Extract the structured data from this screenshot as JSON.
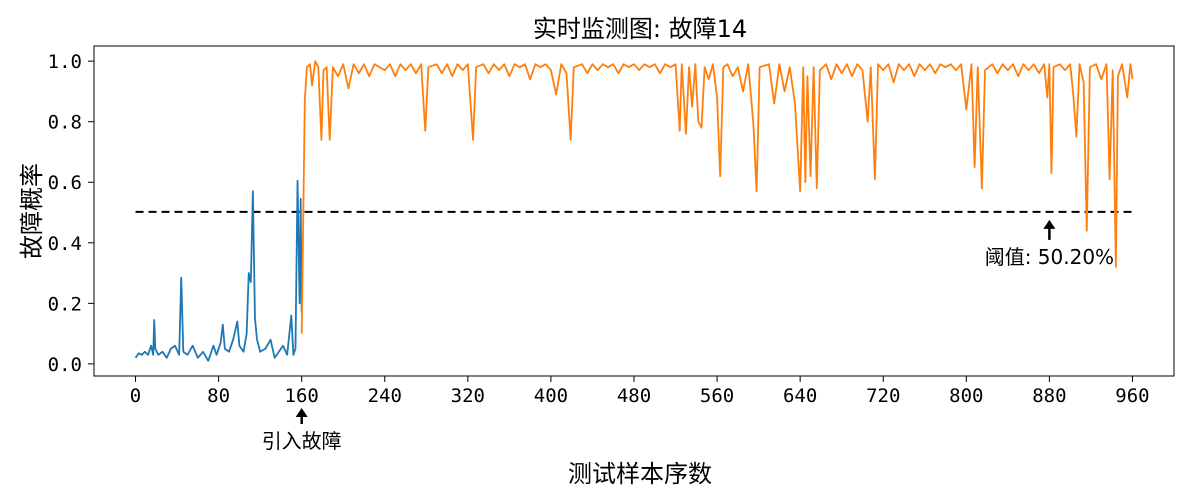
{
  "chart_data": {
    "type": "line",
    "title": "实时监测图: 故障14",
    "xlabel": "测试样本序数",
    "ylabel": "故障概率",
    "xlim": [
      -40,
      1000
    ],
    "ylim": [
      -0.04,
      1.05
    ],
    "xticks": [
      0,
      80,
      160,
      240,
      320,
      400,
      480,
      560,
      640,
      720,
      800,
      880,
      960
    ],
    "yticks": [
      0.0,
      0.2,
      0.4,
      0.6,
      0.8,
      1.0
    ],
    "xtick_labels": [
      "0",
      "80",
      "160",
      "240",
      "320",
      "400",
      "480",
      "560",
      "640",
      "720",
      "800",
      "880",
      "960"
    ],
    "ytick_labels": [
      "0.0",
      "0.2",
      "0.4",
      "0.6",
      "0.8",
      "1.0"
    ],
    "grid": false,
    "threshold": {
      "value": 0.502,
      "x_start": 0,
      "x_end": 960,
      "color": "#000000"
    },
    "annotations": [
      {
        "text": "引入故障",
        "x": 160,
        "y": -0.04,
        "position": "below-axis"
      },
      {
        "text": "阈值: 50.20%",
        "x": 880,
        "y": 0.502,
        "position": "below"
      }
    ],
    "series": [
      {
        "color": "#1f77b4",
        "points": [
          [
            0,
            0.02
          ],
          [
            3,
            0.035
          ],
          [
            6,
            0.03
          ],
          [
            9,
            0.04
          ],
          [
            12,
            0.03
          ],
          [
            15,
            0.06
          ],
          [
            17,
            0.03
          ],
          [
            18,
            0.145
          ],
          [
            19,
            0.05
          ],
          [
            22,
            0.03
          ],
          [
            26,
            0.04
          ],
          [
            30,
            0.02
          ],
          [
            34,
            0.05
          ],
          [
            38,
            0.06
          ],
          [
            42,
            0.03
          ],
          [
            44,
            0.285
          ],
          [
            46,
            0.04
          ],
          [
            50,
            0.03
          ],
          [
            55,
            0.06
          ],
          [
            60,
            0.02
          ],
          [
            65,
            0.04
          ],
          [
            70,
            0.01
          ],
          [
            75,
            0.06
          ],
          [
            78,
            0.03
          ],
          [
            82,
            0.07
          ],
          [
            84,
            0.13
          ],
          [
            86,
            0.05
          ],
          [
            90,
            0.04
          ],
          [
            94,
            0.08
          ],
          [
            98,
            0.14
          ],
          [
            100,
            0.06
          ],
          [
            104,
            0.04
          ],
          [
            107,
            0.1
          ],
          [
            109,
            0.3
          ],
          [
            111,
            0.27
          ],
          [
            113,
            0.57
          ],
          [
            115,
            0.15
          ],
          [
            117,
            0.08
          ],
          [
            120,
            0.04
          ],
          [
            125,
            0.05
          ],
          [
            130,
            0.08
          ],
          [
            134,
            0.02
          ],
          [
            138,
            0.04
          ],
          [
            142,
            0.06
          ],
          [
            146,
            0.03
          ],
          [
            150,
            0.16
          ],
          [
            152,
            0.03
          ],
          [
            154,
            0.05
          ],
          [
            156,
            0.605
          ],
          [
            158,
            0.2
          ],
          [
            159,
            0.545
          ],
          [
            160,
            0.17
          ]
        ]
      },
      {
        "color": "#ff7f0e",
        "points": [
          [
            160,
            0.1
          ],
          [
            163,
            0.87
          ],
          [
            165,
            0.98
          ],
          [
            168,
            0.99
          ],
          [
            170,
            0.92
          ],
          [
            173,
            1.0
          ],
          [
            176,
            0.98
          ],
          [
            179,
            0.74
          ],
          [
            181,
            0.97
          ],
          [
            184,
            0.98
          ],
          [
            187,
            0.74
          ],
          [
            190,
            0.98
          ],
          [
            195,
            0.95
          ],
          [
            200,
            0.99
          ],
          [
            205,
            0.91
          ],
          [
            210,
            0.99
          ],
          [
            215,
            0.96
          ],
          [
            220,
            0.99
          ],
          [
            225,
            0.95
          ],
          [
            230,
            0.99
          ],
          [
            235,
            0.98
          ],
          [
            240,
            0.97
          ],
          [
            245,
            0.99
          ],
          [
            250,
            0.95
          ],
          [
            255,
            0.99
          ],
          [
            260,
            0.97
          ],
          [
            265,
            0.99
          ],
          [
            270,
            0.96
          ],
          [
            275,
            0.99
          ],
          [
            279,
            0.77
          ],
          [
            282,
            0.98
          ],
          [
            290,
            0.99
          ],
          [
            295,
            0.96
          ],
          [
            300,
            0.99
          ],
          [
            305,
            0.95
          ],
          [
            310,
            0.99
          ],
          [
            315,
            0.97
          ],
          [
            320,
            0.99
          ],
          [
            325,
            0.74
          ],
          [
            328,
            0.98
          ],
          [
            335,
            0.99
          ],
          [
            340,
            0.96
          ],
          [
            345,
            0.99
          ],
          [
            350,
            0.97
          ],
          [
            355,
            0.99
          ],
          [
            360,
            0.95
          ],
          [
            365,
            0.99
          ],
          [
            370,
            0.98
          ],
          [
            375,
            0.99
          ],
          [
            380,
            0.94
          ],
          [
            385,
            0.99
          ],
          [
            390,
            0.98
          ],
          [
            395,
            0.99
          ],
          [
            400,
            0.97
          ],
          [
            405,
            0.89
          ],
          [
            410,
            0.99
          ],
          [
            415,
            0.96
          ],
          [
            419,
            0.74
          ],
          [
            422,
            0.98
          ],
          [
            430,
            0.99
          ],
          [
            435,
            0.96
          ],
          [
            440,
            0.99
          ],
          [
            445,
            0.97
          ],
          [
            450,
            0.99
          ],
          [
            455,
            0.98
          ],
          [
            460,
            0.99
          ],
          [
            465,
            0.96
          ],
          [
            470,
            0.99
          ],
          [
            475,
            0.98
          ],
          [
            480,
            0.99
          ],
          [
            485,
            0.97
          ],
          [
            490,
            0.99
          ],
          [
            495,
            0.98
          ],
          [
            500,
            0.99
          ],
          [
            505,
            0.96
          ],
          [
            510,
            0.99
          ],
          [
            515,
            0.98
          ],
          [
            520,
            0.99
          ],
          [
            524,
            0.77
          ],
          [
            526,
            0.99
          ],
          [
            530,
            0.76
          ],
          [
            533,
            0.98
          ],
          [
            536,
            0.85
          ],
          [
            539,
            0.99
          ],
          [
            542,
            0.8
          ],
          [
            545,
            0.78
          ],
          [
            548,
            0.98
          ],
          [
            552,
            0.94
          ],
          [
            556,
            0.99
          ],
          [
            560,
            0.88
          ],
          [
            563,
            0.62
          ],
          [
            566,
            0.98
          ],
          [
            570,
            0.99
          ],
          [
            575,
            0.95
          ],
          [
            580,
            0.98
          ],
          [
            585,
            0.9
          ],
          [
            590,
            0.99
          ],
          [
            595,
            0.79
          ],
          [
            598,
            0.57
          ],
          [
            601,
            0.98
          ],
          [
            610,
            0.99
          ],
          [
            615,
            0.86
          ],
          [
            620,
            0.99
          ],
          [
            625,
            0.9
          ],
          [
            630,
            0.98
          ],
          [
            635,
            0.86
          ],
          [
            640,
            0.57
          ],
          [
            643,
            0.98
          ],
          [
            645,
            0.6
          ],
          [
            647,
            0.95
          ],
          [
            650,
            0.62
          ],
          [
            653,
            0.98
          ],
          [
            656,
            0.58
          ],
          [
            659,
            0.97
          ],
          [
            665,
            0.99
          ],
          [
            670,
            0.94
          ],
          [
            675,
            0.99
          ],
          [
            680,
            0.96
          ],
          [
            685,
            0.99
          ],
          [
            690,
            0.95
          ],
          [
            695,
            0.99
          ],
          [
            700,
            0.97
          ],
          [
            705,
            0.8
          ],
          [
            708,
            0.98
          ],
          [
            712,
            0.61
          ],
          [
            715,
            0.99
          ],
          [
            720,
            0.97
          ],
          [
            725,
            0.99
          ],
          [
            730,
            0.93
          ],
          [
            735,
            0.99
          ],
          [
            740,
            0.97
          ],
          [
            745,
            0.99
          ],
          [
            750,
            0.95
          ],
          [
            755,
            0.99
          ],
          [
            760,
            0.97
          ],
          [
            765,
            0.99
          ],
          [
            770,
            0.96
          ],
          [
            775,
            0.99
          ],
          [
            780,
            0.98
          ],
          [
            785,
            0.99
          ],
          [
            790,
            0.97
          ],
          [
            795,
            0.99
          ],
          [
            800,
            0.84
          ],
          [
            805,
            0.99
          ],
          [
            808,
            0.65
          ],
          [
            811,
            0.98
          ],
          [
            815,
            0.58
          ],
          [
            818,
            0.97
          ],
          [
            825,
            0.99
          ],
          [
            830,
            0.96
          ],
          [
            835,
            0.99
          ],
          [
            840,
            0.97
          ],
          [
            845,
            0.99
          ],
          [
            850,
            0.95
          ],
          [
            855,
            0.99
          ],
          [
            860,
            0.97
          ],
          [
            865,
            0.99
          ],
          [
            870,
            0.96
          ],
          [
            875,
            0.99
          ],
          [
            878,
            0.88
          ],
          [
            880,
            0.99
          ],
          [
            882,
            0.63
          ],
          [
            884,
            0.98
          ],
          [
            890,
            0.99
          ],
          [
            895,
            0.97
          ],
          [
            900,
            0.99
          ],
          [
            903,
            0.89
          ],
          [
            906,
            0.75
          ],
          [
            909,
            0.99
          ],
          [
            913,
            0.93
          ],
          [
            916,
            0.44
          ],
          [
            919,
            0.98
          ],
          [
            925,
            0.99
          ],
          [
            930,
            0.94
          ],
          [
            935,
            0.99
          ],
          [
            938,
            0.61
          ],
          [
            941,
            0.97
          ],
          [
            944,
            0.32
          ],
          [
            946,
            0.95
          ],
          [
            950,
            0.99
          ],
          [
            955,
            0.88
          ],
          [
            958,
            0.99
          ],
          [
            960,
            0.94
          ]
        ]
      }
    ]
  }
}
